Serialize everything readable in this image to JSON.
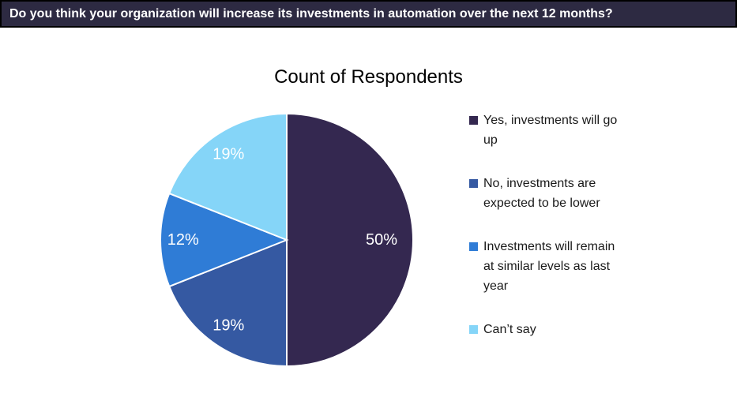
{
  "header": {
    "question": "Do you think your organization will increase its investments in automation over the next 12 months?",
    "background_color": "#2D2A42",
    "border_color": "#000000",
    "text_color": "#FFFFFF"
  },
  "chart_data": {
    "type": "pie",
    "title": "Count of Respondents",
    "start_angle_deg": 0,
    "direction": "clockwise",
    "legend_position": "right",
    "data_label_color": "#FFFFFF",
    "slice_border_color": "#FFFFFF",
    "slices": [
      {
        "label": "Yes, investments will go up",
        "value_pct": 50,
        "data_label": "50%",
        "color": "#342850"
      },
      {
        "label": "No, investments are expected to be lower",
        "value_pct": 19,
        "data_label": "19%",
        "color": "#3559A2"
      },
      {
        "label": "Investments will remain at similar levels as last year",
        "value_pct": 12,
        "data_label": "12%",
        "color": "#2F7CD6"
      },
      {
        "label": "Can’t say",
        "value_pct": 19,
        "data_label": "19%",
        "color": "#85D5F8"
      }
    ]
  }
}
